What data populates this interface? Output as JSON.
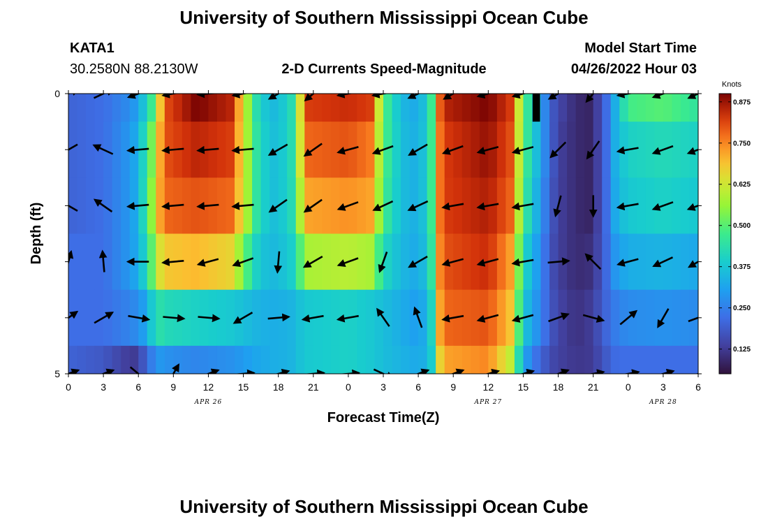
{
  "header": {
    "title": "University of Southern Mississippi Ocean Cube",
    "station_id": "KATA1",
    "station_coords": "30.2580N  88.2130W",
    "plot_title": "2-D Currents Speed-Magnitude",
    "model_start_label": "Model Start Time",
    "model_start_value": "04/26/2022 Hour 03"
  },
  "footer": {
    "title": "University of Southern Mississippi Ocean Cube"
  },
  "chart_data": {
    "type": "heatmap",
    "title": "2-D Currents Speed-Magnitude",
    "xlabel": "Forecast Time(Z)",
    "ylabel": "Depth (ft)",
    "x_tick_labels": [
      "0",
      "3",
      "6",
      "9",
      "12",
      "15",
      "18",
      "21",
      "0",
      "3",
      "6",
      "9",
      "12",
      "15",
      "18",
      "21",
      "0",
      "3",
      "6"
    ],
    "x_range_hours": [
      0,
      54
    ],
    "y_tick_labels": [
      "0",
      "5"
    ],
    "y_range_ft": [
      0,
      5
    ],
    "date_labels": [
      {
        "text": "APR 26",
        "hour": 12
      },
      {
        "text": "APR 27",
        "hour": 36
      },
      {
        "text": "APR 28",
        "hour": 51
      }
    ],
    "colorbar": {
      "unit": "Knots",
      "range": [
        0.05,
        0.9
      ],
      "tick_labels": [
        "0.125",
        "0.250",
        "0.375",
        "0.500",
        "0.625",
        "0.750",
        "0.875"
      ],
      "tick_values": [
        0.125,
        0.25,
        0.375,
        0.5,
        0.625,
        0.75,
        0.875
      ]
    },
    "depth_layer_centers_ft": [
      0.25,
      1.0,
      2.0,
      3.0,
      4.0,
      4.75
    ],
    "speed_profile": {
      "hours": [
        0,
        3,
        5.5,
        6.8,
        7.5,
        8.2,
        11,
        14,
        15.2,
        16.3,
        17.5,
        19,
        19.7,
        20.2,
        24,
        26,
        27,
        28.5,
        30,
        31,
        31.5,
        32,
        36,
        38,
        39,
        40.2,
        41.5,
        42.5,
        43.5,
        44.5,
        45.2,
        46,
        47,
        48,
        51,
        54
      ],
      "layers": [
        [
          0.2,
          0.22,
          0.28,
          0.4,
          0.55,
          0.8,
          0.9,
          0.85,
          0.6,
          0.4,
          0.35,
          0.4,
          0.55,
          0.82,
          0.84,
          0.82,
          0.5,
          0.35,
          0.32,
          0.42,
          0.62,
          0.85,
          0.9,
          0.82,
          0.5,
          0.35,
          0.18,
          0.13,
          0.1,
          0.08,
          0.12,
          0.2,
          0.35,
          0.48,
          0.5,
          0.45
        ],
        [
          0.2,
          0.22,
          0.3,
          0.45,
          0.62,
          0.8,
          0.85,
          0.82,
          0.6,
          0.42,
          0.36,
          0.4,
          0.55,
          0.78,
          0.8,
          0.76,
          0.5,
          0.36,
          0.33,
          0.42,
          0.62,
          0.82,
          0.88,
          0.8,
          0.5,
          0.35,
          0.18,
          0.12,
          0.1,
          0.08,
          0.12,
          0.2,
          0.35,
          0.4,
          0.42,
          0.4
        ],
        [
          0.2,
          0.22,
          0.3,
          0.46,
          0.66,
          0.78,
          0.8,
          0.78,
          0.6,
          0.42,
          0.36,
          0.4,
          0.52,
          0.72,
          0.74,
          0.72,
          0.48,
          0.36,
          0.33,
          0.42,
          0.62,
          0.82,
          0.86,
          0.78,
          0.48,
          0.33,
          0.17,
          0.12,
          0.1,
          0.08,
          0.12,
          0.2,
          0.34,
          0.38,
          0.4,
          0.38
        ],
        [
          0.22,
          0.22,
          0.3,
          0.42,
          0.6,
          0.68,
          0.7,
          0.66,
          0.5,
          0.38,
          0.35,
          0.38,
          0.45,
          0.58,
          0.6,
          0.58,
          0.42,
          0.35,
          0.32,
          0.4,
          0.6,
          0.8,
          0.84,
          0.72,
          0.42,
          0.3,
          0.16,
          0.12,
          0.1,
          0.1,
          0.13,
          0.2,
          0.3,
          0.33,
          0.34,
          0.32
        ],
        [
          0.22,
          0.22,
          0.26,
          0.32,
          0.45,
          0.42,
          0.4,
          0.38,
          0.36,
          0.34,
          0.33,
          0.34,
          0.36,
          0.38,
          0.4,
          0.38,
          0.36,
          0.33,
          0.3,
          0.36,
          0.55,
          0.78,
          0.8,
          0.68,
          0.38,
          0.28,
          0.17,
          0.13,
          0.11,
          0.12,
          0.15,
          0.2,
          0.25,
          0.27,
          0.28,
          0.27
        ],
        [
          0.2,
          0.18,
          0.12,
          0.2,
          0.3,
          0.28,
          0.26,
          0.28,
          0.3,
          0.32,
          0.33,
          0.34,
          0.36,
          0.38,
          0.4,
          0.38,
          0.36,
          0.34,
          0.32,
          0.35,
          0.5,
          0.72,
          0.75,
          0.6,
          0.32,
          0.22,
          0.15,
          0.13,
          0.12,
          0.12,
          0.14,
          0.18,
          0.22,
          0.22,
          0.22,
          0.22
        ]
      ]
    },
    "vector_grid": {
      "hours": [
        0,
        3,
        6,
        9,
        12,
        15,
        18,
        21,
        24,
        27,
        30,
        33,
        36,
        39,
        42,
        45,
        48,
        51,
        54
      ],
      "depths_ft": [
        0,
        1,
        2,
        3,
        4,
        5
      ],
      "dirs_deg": [
        [
          25,
          25,
          200,
          190,
          185,
          190,
          210,
          220,
          190,
          190,
          205,
          210,
          195,
          195,
          210,
          230,
          190,
          200,
          205
        ],
        [
          210,
          155,
          185,
          185,
          185,
          185,
          210,
          215,
          195,
          200,
          210,
          200,
          195,
          195,
          225,
          235,
          190,
          200,
          200
        ],
        [
          150,
          145,
          185,
          185,
          185,
          185,
          215,
          215,
          200,
          205,
          205,
          190,
          190,
          190,
          255,
          270,
          190,
          200,
          200
        ],
        [
          75,
          95,
          180,
          185,
          195,
          200,
          265,
          210,
          200,
          250,
          210,
          195,
          195,
          190,
          5,
          135,
          195,
          205,
          210
        ],
        [
          35,
          30,
          350,
          355,
          355,
          210,
          5,
          190,
          190,
          125,
          110,
          190,
          195,
          195,
          20,
          345,
          40,
          240,
          20
        ],
        [
          20,
          20,
          320,
          60,
          20,
          5,
          15,
          5,
          5,
          335,
          20,
          20,
          15,
          15,
          20,
          10,
          10,
          15,
          20
        ]
      ],
      "missing_cells": [
        [
          0,
          0
        ],
        [
          0,
          1
        ],
        [
          0,
          2
        ],
        [
          0,
          3
        ],
        [
          0,
          4
        ],
        [
          0,
          5
        ],
        [
          0,
          6
        ],
        [
          0,
          7
        ],
        [
          0,
          8
        ],
        [
          0,
          9
        ],
        [
          0,
          10
        ],
        [
          0,
          11
        ],
        [
          0,
          12
        ],
        [
          0,
          13
        ],
        [
          0,
          14
        ],
        [
          0,
          15
        ],
        [
          0,
          16
        ],
        [
          0,
          17
        ],
        [
          0,
          18
        ],
        [
          1,
          0
        ],
        [
          1,
          1
        ],
        [
          1,
          2
        ],
        [
          1,
          3
        ],
        [
          1,
          4
        ],
        [
          1,
          5
        ],
        [
          1,
          6
        ],
        [
          1,
          7
        ],
        [
          1,
          8
        ],
        [
          1,
          9
        ],
        [
          1,
          10
        ],
        [
          1,
          11
        ],
        [
          1,
          12
        ],
        [
          1,
          13
        ],
        [
          1,
          14
        ],
        [
          1,
          15
        ],
        [
          1,
          16
        ],
        [
          1,
          17
        ],
        [
          1,
          18
        ],
        [
          2,
          0
        ],
        [
          2,
          1
        ],
        [
          2,
          2
        ],
        [
          2,
          3
        ],
        [
          2,
          4
        ],
        [
          2,
          5
        ],
        [
          2,
          6
        ],
        [
          2,
          7
        ],
        [
          2,
          8
        ],
        [
          2,
          9
        ],
        [
          2,
          10
        ],
        [
          2,
          11
        ],
        [
          2,
          12
        ],
        [
          2,
          13
        ],
        [
          2,
          14
        ],
        [
          2,
          15
        ],
        [
          2,
          16
        ],
        [
          2,
          17
        ],
        [
          2,
          18
        ],
        [
          3,
          0
        ],
        [
          3,
          1
        ],
        [
          3,
          2
        ],
        [
          3,
          3
        ],
        [
          3,
          4
        ],
        [
          3,
          5
        ],
        [
          3,
          6
        ],
        [
          3,
          7
        ],
        [
          3,
          8
        ],
        [
          3,
          9
        ],
        [
          3,
          10
        ],
        [
          3,
          11
        ],
        [
          3,
          12
        ],
        [
          3,
          13
        ],
        [
          3,
          14
        ],
        [
          3,
          15
        ],
        [
          3,
          16
        ],
        [
          3,
          17
        ],
        [
          3,
          18
        ],
        [
          4,
          0
        ],
        [
          4,
          1
        ],
        [
          4,
          2
        ],
        [
          4,
          3
        ],
        [
          4,
          4
        ],
        [
          4,
          5
        ],
        [
          4,
          6
        ],
        [
          4,
          7
        ],
        [
          4,
          8
        ],
        [
          4,
          9
        ],
        [
          4,
          10
        ],
        [
          4,
          11
        ],
        [
          4,
          12
        ],
        [
          4,
          13
        ],
        [
          4,
          14
        ],
        [
          4,
          15
        ],
        [
          4,
          16
        ],
        [
          4,
          17
        ],
        [
          4,
          18
        ],
        [
          5,
          0
        ],
        [
          5,
          1
        ],
        [
          5,
          2
        ],
        [
          5,
          3
        ],
        [
          5,
          4
        ],
        [
          5,
          5
        ],
        [
          5,
          6
        ],
        [
          5,
          7
        ],
        [
          5,
          8
        ],
        [
          5,
          9
        ],
        [
          5,
          10
        ],
        [
          5,
          11
        ],
        [
          5,
          12
        ],
        [
          5,
          13
        ],
        [
          5,
          14
        ],
        [
          5,
          15
        ],
        [
          5,
          16
        ],
        [
          5,
          17
        ],
        [
          5,
          18
        ]
      ],
      "show": [
        [
          false,
          false,
          true,
          true,
          true,
          true,
          true,
          true,
          true,
          true,
          true,
          true,
          true,
          true,
          true,
          true,
          true,
          true,
          true
        ],
        [
          false,
          true,
          true,
          true,
          true,
          true,
          true,
          true,
          true,
          true,
          true,
          true,
          true,
          true,
          true,
          true,
          true,
          true,
          true
        ],
        [
          false,
          true,
          true,
          true,
          true,
          true,
          true,
          true,
          true,
          true,
          true,
          true,
          true,
          true,
          true,
          true,
          true,
          true,
          true
        ],
        [
          true,
          true,
          true,
          true,
          true,
          true,
          true,
          true,
          true,
          true,
          true,
          true,
          true,
          true,
          true,
          true,
          true,
          true,
          true
        ],
        [
          true,
          true,
          true,
          true,
          true,
          true,
          true,
          true,
          true,
          true,
          true,
          true,
          true,
          true,
          true,
          true,
          true,
          true,
          true
        ],
        [
          true,
          true,
          true,
          true,
          true,
          true,
          true,
          true,
          true,
          true,
          true,
          true,
          true,
          true,
          true,
          true,
          true,
          true,
          true
        ]
      ]
    },
    "missing_data_hours": [
      39.8,
      40.2
    ],
    "missing_data_depth_ft": [
      0,
      0.5
    ]
  }
}
